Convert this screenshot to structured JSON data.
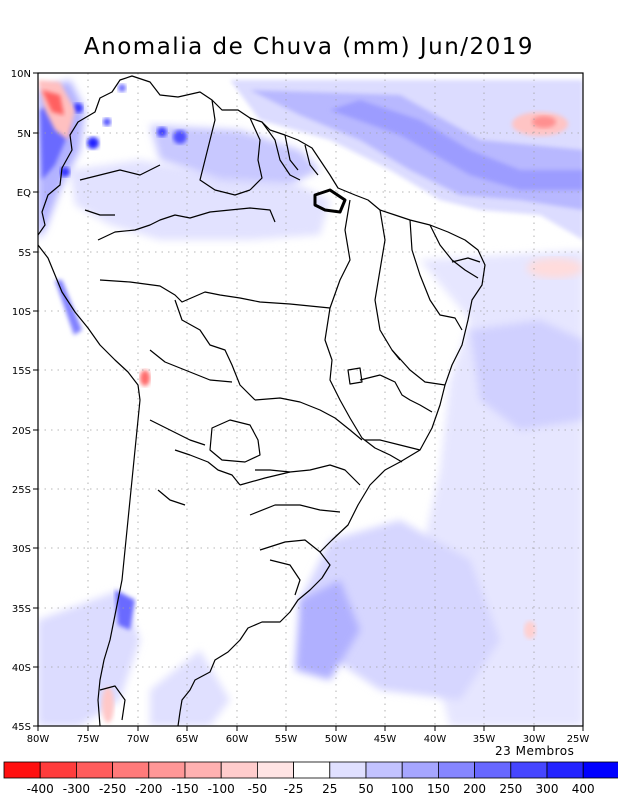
{
  "title": "Anomalia de Chuva (mm) Jun/2019",
  "members_label": "23 Membros",
  "axes": {
    "lon_ticks": [
      "80W",
      "75W",
      "70W",
      "65W",
      "60W",
      "55W",
      "50W",
      "45W",
      "40W",
      "35W",
      "30W",
      "25W"
    ],
    "lat_ticks": [
      "10N",
      "5N",
      "EQ",
      "5S",
      "10S",
      "15S",
      "20S",
      "25S",
      "30S",
      "35S",
      "40S",
      "45S"
    ],
    "lon_range": [
      -80,
      -25
    ],
    "lat_range": [
      -45,
      10
    ],
    "grid": "dotted"
  },
  "legend": {
    "labels": [
      "-400",
      "-300",
      "-250",
      "-200",
      "-150",
      "-100",
      "-50",
      "-25",
      "25",
      "50",
      "100",
      "150",
      "200",
      "250",
      "300",
      "400"
    ],
    "colors": [
      "#ff1010",
      "#ff3c3c",
      "#ff5c5c",
      "#ff7a7a",
      "#ff9797",
      "#ffb1b1",
      "#ffcccc",
      "#ffe4e4",
      "#ffffff",
      "#e0e0ff",
      "#c3c3ff",
      "#a6a6ff",
      "#8686ff",
      "#6767ff",
      "#4646ff",
      "#2323ff",
      "#0000ff"
    ]
  }
}
